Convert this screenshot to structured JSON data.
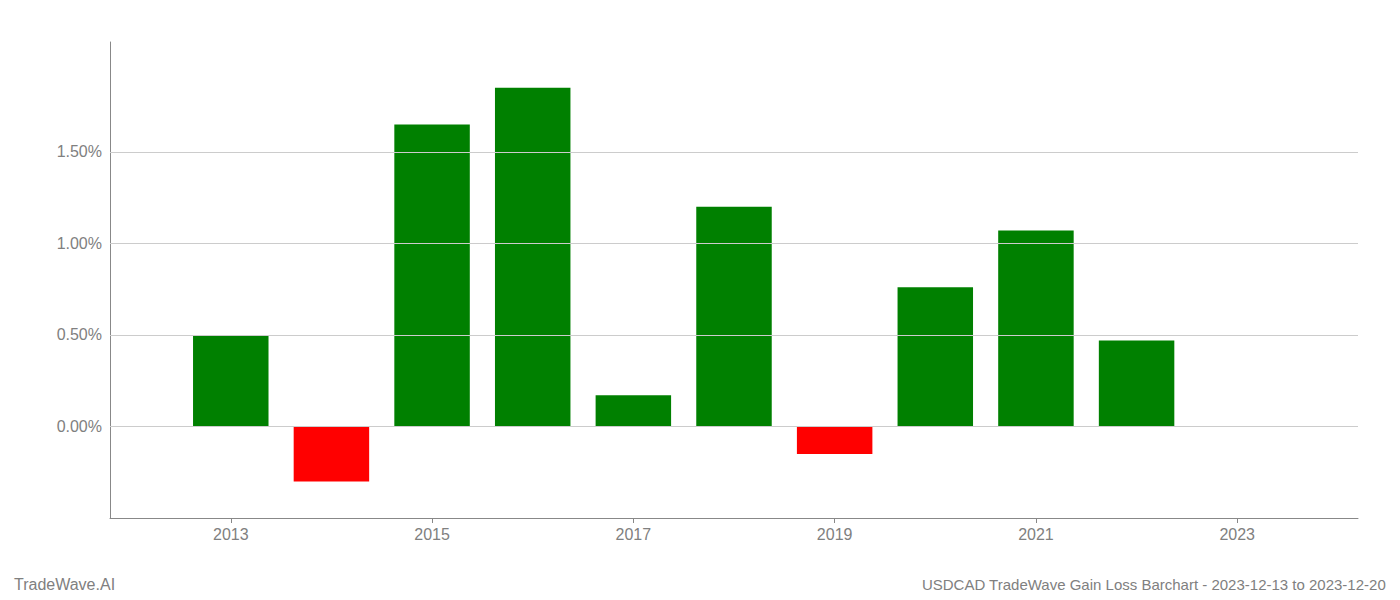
{
  "chart_data": {
    "type": "bar",
    "annotations": [
      "TradeWave.AI",
      "USDCAD TradeWave Gain Loss Barchart - 2023-12-13 to 2023-12-20"
    ],
    "x": [
      2013,
      2014,
      2015,
      2016,
      2017,
      2018,
      2019,
      2020,
      2021,
      2022
    ],
    "values": [
      0.5,
      -0.3,
      1.65,
      1.85,
      0.17,
      1.2,
      -0.15,
      0.76,
      1.07,
      0.47
    ],
    "colors": [
      "#008000",
      "#ff0000",
      "#008000",
      "#008000",
      "#008000",
      "#008000",
      "#ff0000",
      "#008000",
      "#008000",
      "#008000"
    ],
    "xlim": [
      2011.8,
      2024.2
    ],
    "xticks": [
      2013,
      2015,
      2017,
      2019,
      2021,
      2023
    ],
    "ylim": [
      -0.5,
      2.1
    ],
    "yticks": [
      {
        "value": 0.0,
        "label": "0.00%"
      },
      {
        "value": 0.5,
        "label": "0.50%"
      },
      {
        "value": 1.0,
        "label": "1.00%"
      },
      {
        "value": 1.5,
        "label": "1.50%"
      }
    ],
    "grid": true
  }
}
